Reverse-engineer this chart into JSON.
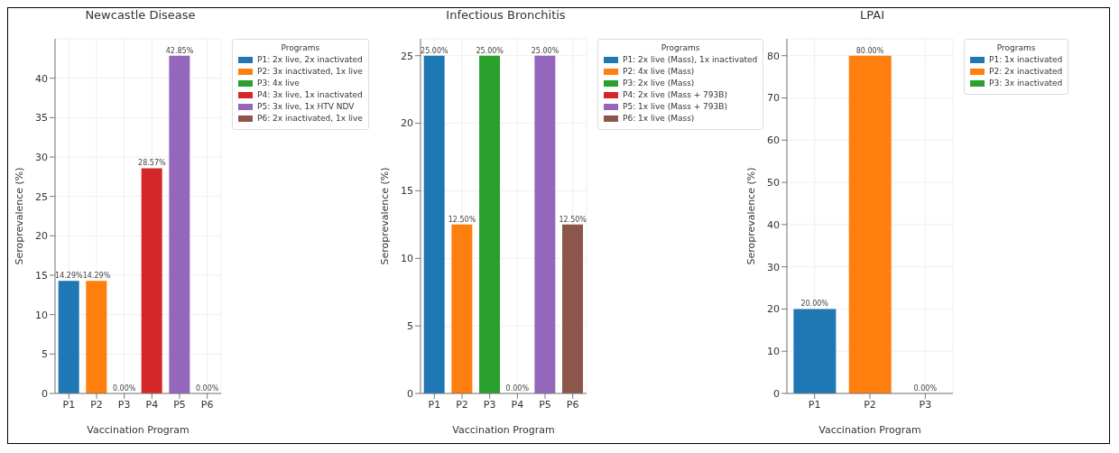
{
  "chart_data": [
    {
      "type": "bar",
      "title": "Newcastle Disease",
      "xlabel": "Vaccination Program",
      "ylabel": "Seroprevalence (%)",
      "legend_title": "Programs",
      "legend": "right",
      "grid": true,
      "stacked": true,
      "categories": [
        "P1",
        "P2",
        "P3",
        "P4",
        "P5",
        "P6"
      ],
      "ylim": [
        0,
        45
      ],
      "yticks": [
        0,
        5,
        10,
        15,
        20,
        25,
        30,
        35,
        40
      ],
      "series": [
        {
          "name": "P1: 2x live, 2x inactivated",
          "color": "#1f77b4",
          "values": [
            14.29,
            null,
            null,
            null,
            null,
            null
          ],
          "value_labels": [
            "14.29%",
            null,
            null,
            null,
            null,
            null
          ]
        },
        {
          "name": "P2: 3x inactivated, 1x live",
          "color": "#ff7f0e",
          "values": [
            null,
            14.29,
            null,
            null,
            null,
            null
          ],
          "value_labels": [
            null,
            "14.29%",
            null,
            null,
            null,
            null
          ]
        },
        {
          "name": "P3: 4x live",
          "color": "#2ca02c",
          "values": [
            null,
            null,
            0,
            null,
            null,
            null
          ],
          "value_labels": [
            null,
            null,
            "0.00%",
            null,
            null,
            null
          ]
        },
        {
          "name": "P4: 3x live, 1x inactivated",
          "color": "#d62728",
          "values": [
            null,
            null,
            null,
            28.57,
            null,
            null
          ],
          "value_labels": [
            null,
            null,
            null,
            "28.57%",
            null,
            null
          ]
        },
        {
          "name": "P5: 3x live, 1x HTV NDV",
          "color": "#9467bd",
          "values": [
            null,
            null,
            null,
            null,
            42.85,
            null
          ],
          "value_labels": [
            null,
            null,
            null,
            null,
            "42.85%",
            null
          ]
        },
        {
          "name": "P6: 2x inactivated, 1x live",
          "color": "#8c564b",
          "values": [
            null,
            null,
            null,
            null,
            null,
            0
          ],
          "value_labels": [
            null,
            null,
            null,
            null,
            null,
            "0.00%"
          ]
        }
      ]
    },
    {
      "type": "bar",
      "title": "Infectious Bronchitis",
      "xlabel": "Vaccination Program",
      "ylabel": "Seroprevalence (%)",
      "legend_title": "Programs",
      "legend": "right",
      "grid": true,
      "stacked": true,
      "categories": [
        "P1",
        "P2",
        "P3",
        "P4",
        "P5",
        "P6"
      ],
      "ylim": [
        0,
        26.25
      ],
      "yticks": [
        0,
        5,
        10,
        15,
        20,
        25
      ],
      "series": [
        {
          "name": "P1: 2x live (Mass), 1x inactivated",
          "color": "#1f77b4",
          "values": [
            25,
            null,
            null,
            null,
            null,
            null
          ],
          "value_labels": [
            "25.00%",
            null,
            null,
            null,
            null,
            null
          ]
        },
        {
          "name": "P2: 4x live (Mass)",
          "color": "#ff7f0e",
          "values": [
            null,
            12.5,
            null,
            null,
            null,
            null
          ],
          "value_labels": [
            null,
            "12.50%",
            null,
            null,
            null,
            null
          ]
        },
        {
          "name": "P3: 2x live (Mass)",
          "color": "#2ca02c",
          "values": [
            null,
            null,
            25,
            null,
            null,
            null
          ],
          "value_labels": [
            null,
            null,
            "25.00%",
            null,
            null,
            null
          ]
        },
        {
          "name": "P4: 2x live (Mass + 793B)",
          "color": "#d62728",
          "values": [
            null,
            null,
            null,
            0,
            null,
            null
          ],
          "value_labels": [
            null,
            null,
            null,
            "0.00%",
            null,
            null
          ]
        },
        {
          "name": "P5: 1x live (Mass + 793B)",
          "color": "#9467bd",
          "values": [
            null,
            null,
            null,
            null,
            25,
            null
          ],
          "value_labels": [
            null,
            null,
            null,
            null,
            "25.00%",
            null
          ]
        },
        {
          "name": "P6: 1x live (Mass)",
          "color": "#8c564b",
          "values": [
            null,
            null,
            null,
            null,
            null,
            12.5
          ],
          "value_labels": [
            null,
            null,
            null,
            null,
            null,
            "12.50%"
          ]
        }
      ]
    },
    {
      "type": "bar",
      "title": "LPAI",
      "xlabel": "Vaccination Program",
      "ylabel": "Seroprevalence (%)",
      "legend_title": "Programs",
      "legend": "right",
      "grid": true,
      "stacked": true,
      "categories": [
        "P1",
        "P2",
        "P3"
      ],
      "ylim": [
        0,
        84
      ],
      "yticks": [
        0,
        10,
        20,
        30,
        40,
        50,
        60,
        70,
        80
      ],
      "series": [
        {
          "name": "P1: 1x inactivated",
          "color": "#1f77b4",
          "values": [
            20,
            null,
            null
          ],
          "value_labels": [
            "20.00%",
            null,
            null
          ]
        },
        {
          "name": "P2: 2x inactivated",
          "color": "#ff7f0e",
          "values": [
            null,
            80,
            null
          ],
          "value_labels": [
            null,
            "80.00%",
            null
          ]
        },
        {
          "name": "P3: 3x inactivated",
          "color": "#2ca02c",
          "values": [
            null,
            null,
            0
          ],
          "value_labels": [
            null,
            null,
            "0.00%"
          ]
        }
      ]
    }
  ]
}
